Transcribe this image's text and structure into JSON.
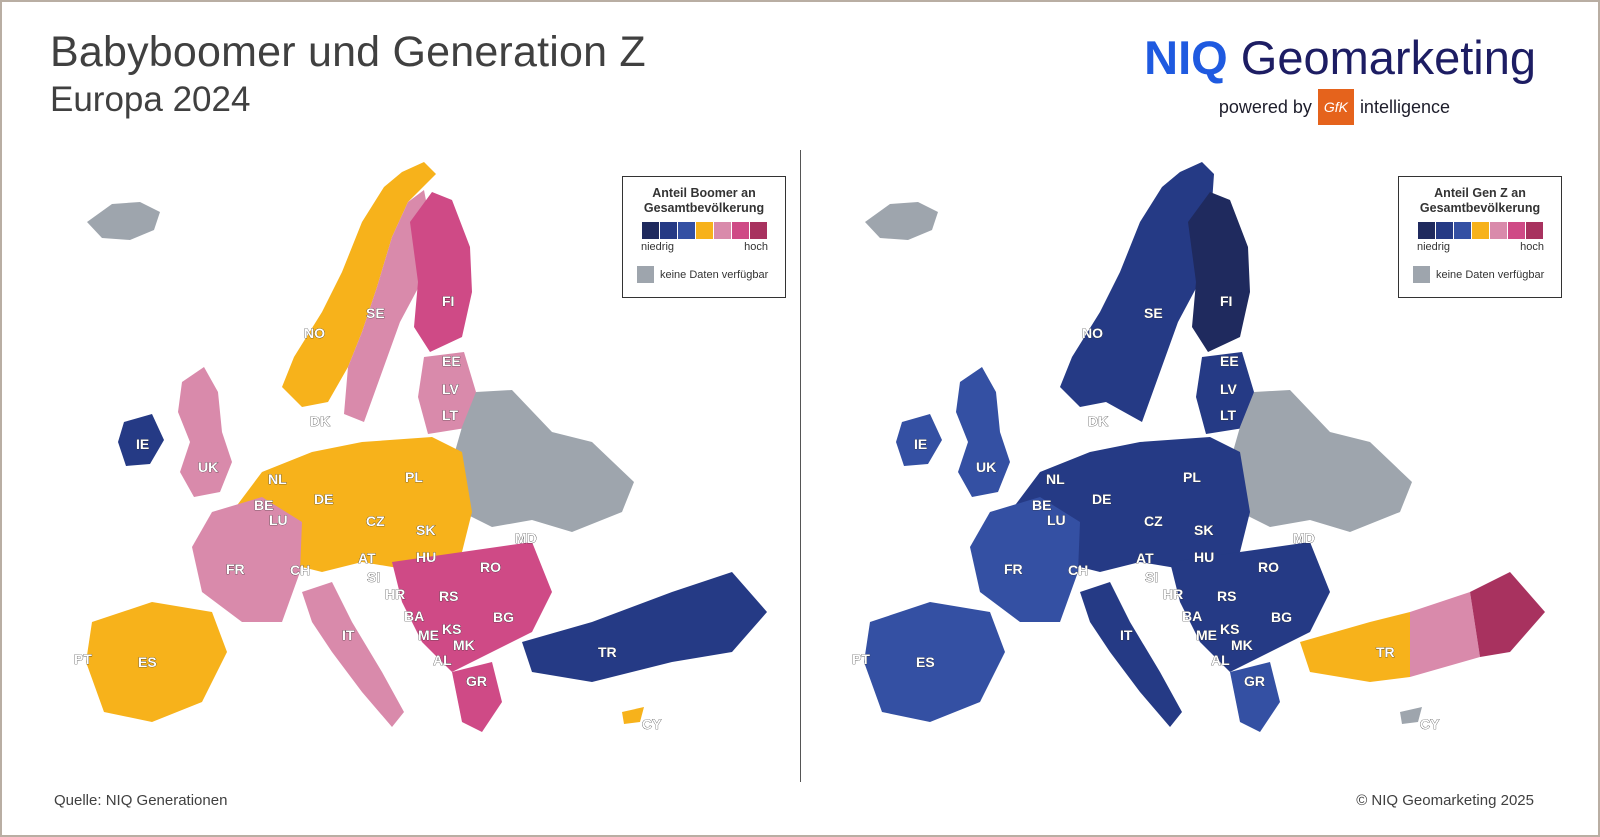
{
  "header": {
    "title": "Babyboomer und Generation Z",
    "subtitle": "Europa 2024"
  },
  "logo": {
    "brand": "NIQ",
    "product": "Geomarketing",
    "powered_by": "powered by",
    "gfk": "GfK",
    "intelligence": "intelligence"
  },
  "colors": {
    "scale": [
      "#1f2a5e",
      "#253a85",
      "#3450a3",
      "#f7b21b",
      "#d98aab",
      "#cf4a86",
      "#a8325f"
    ],
    "no_data": "#9ea5ad"
  },
  "maps": [
    {
      "legend_title_line1": "Anteil Boomer an",
      "legend_title_line2": "Gesamtbevölkerung",
      "low": "niedrig",
      "high": "hoch",
      "no_data": "keine Daten verfügbar",
      "countries": [
        "NO",
        "SE",
        "FI",
        "EE",
        "LV",
        "LT",
        "DK",
        "IE",
        "UK",
        "NL",
        "BE",
        "LU",
        "DE",
        "PL",
        "CZ",
        "SK",
        "FR",
        "CH",
        "AT",
        "HU",
        "SI",
        "HR",
        "RO",
        "MD",
        "BA",
        "RS",
        "BG",
        "ME",
        "KS",
        "MK",
        "AL",
        "IT",
        "ES",
        "PT",
        "GR",
        "TR",
        "CY"
      ]
    },
    {
      "legend_title_line1": "Anteil Gen Z an",
      "legend_title_line2": "Gesamtbevölkerung",
      "low": "niedrig",
      "high": "hoch",
      "no_data": "keine Daten verfügbar",
      "countries": [
        "NO",
        "SE",
        "FI",
        "EE",
        "LV",
        "LT",
        "DK",
        "IE",
        "UK",
        "NL",
        "BE",
        "LU",
        "DE",
        "PL",
        "CZ",
        "SK",
        "FR",
        "CH",
        "AT",
        "HU",
        "SI",
        "HR",
        "RO",
        "MD",
        "BA",
        "RS",
        "BG",
        "ME",
        "KS",
        "MK",
        "AL",
        "IT",
        "ES",
        "PT",
        "GR",
        "TR",
        "CY"
      ]
    }
  ],
  "footer": {
    "source": "Quelle: NIQ Generationen",
    "copyright": "© NIQ Geomarketing 2025"
  }
}
